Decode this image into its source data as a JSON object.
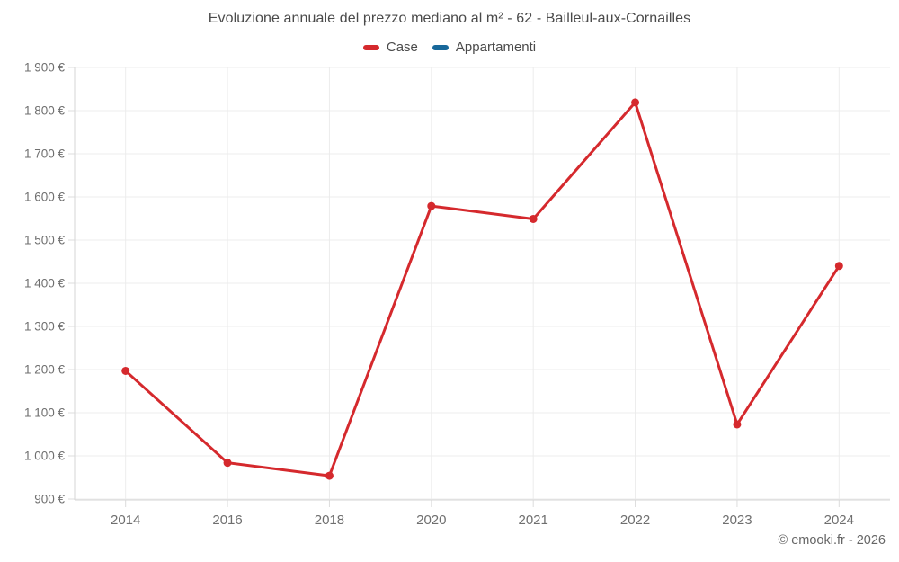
{
  "chart": {
    "footer_credit": "© emooki.fr - 2026",
    "colors": {
      "case_red": "#d5292d",
      "appartamenti_blue": "#17689a",
      "gridline": "#ececec",
      "axis_line": "#d6d6d6",
      "tick": "#dcdcdc",
      "axis_label": "#6f6f6f",
      "title_text": "#4a4a4a"
    }
  },
  "chart_data": {
    "type": "line",
    "title": "Evoluzione annuale del prezzo mediano al m² - 62 - Bailleul-aux-Cornailles",
    "categories": [
      "2014",
      "2016",
      "2018",
      "2020",
      "2021",
      "2022",
      "2023",
      "2024"
    ],
    "series": [
      {
        "name": "Case",
        "color": "#d5292d",
        "values": [
          1197,
          984,
          954,
          1579,
          1549,
          1819,
          1073,
          1440
        ]
      },
      {
        "name": "Appartamenti",
        "color": "#17689a",
        "values": []
      }
    ],
    "xlabel": "",
    "ylabel": "",
    "ylim": [
      900,
      1900
    ],
    "ytick_step": 100,
    "ytick_labels": [
      "900 €",
      "1 000 €",
      "1 100 €",
      "1 200 €",
      "1 300 €",
      "1 400 €",
      "1 500 €",
      "1 600 €",
      "1 700 €",
      "1 800 €",
      "1 900 €"
    ],
    "grid": true,
    "legend_position": "top"
  },
  "footer": {
    "credit": "© emooki.fr - 2026"
  }
}
